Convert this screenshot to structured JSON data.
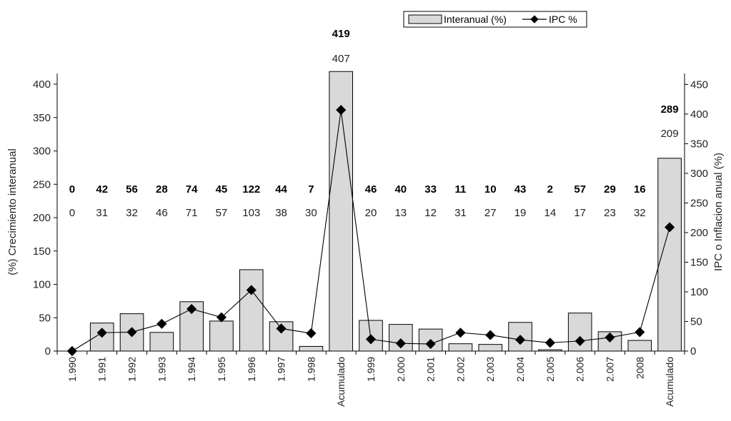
{
  "chart_data": {
    "type": "bar",
    "categories": [
      "1.990",
      "1.991",
      "1.992",
      "1.993",
      "1.994",
      "1.995",
      "1.996",
      "1.997",
      "1.998",
      "Acumulado",
      "1.999",
      "2.000",
      "2.001",
      "2.002",
      "2.003",
      "2.004",
      "2.005",
      "2.006",
      "2.007",
      "2008",
      "Acumulado"
    ],
    "series": [
      {
        "name": "Interanual (%)",
        "type": "bar",
        "axis": "left",
        "color": "#d9d9d9",
        "values": [
          0,
          42,
          56,
          28,
          74,
          45,
          122,
          44,
          7,
          419,
          46,
          40,
          33,
          11,
          10,
          43,
          2,
          57,
          29,
          16,
          289
        ],
        "labels": [
          "0",
          "42",
          "56",
          "28",
          "74",
          "45",
          "122",
          "44",
          "7",
          "419",
          "46",
          "40",
          "33",
          "11",
          "10",
          "43",
          "2",
          "57",
          "29",
          "16",
          "289"
        ]
      },
      {
        "name": "IPC %",
        "type": "line",
        "axis": "right",
        "color": "#000000",
        "values": [
          0,
          31,
          32,
          46,
          71,
          57,
          103,
          38,
          30,
          407,
          20,
          13,
          12,
          31,
          27,
          19,
          14,
          17,
          23,
          32,
          209
        ],
        "labels": [
          "0",
          "31",
          "32",
          "46",
          "71",
          "57",
          "103",
          "38",
          "30",
          "407",
          "20",
          "13",
          "12",
          "31",
          "27",
          "19",
          "14",
          "17",
          "23",
          "32",
          "209"
        ]
      }
    ],
    "ylabel": "(%) Crecimiento interanual",
    "y2label": "IPC o Inflacion anual (%)",
    "ylim": [
      0,
      420
    ],
    "y2lim": [
      0,
      450
    ],
    "yticks": [
      "0",
      "50",
      "100",
      "150",
      "200",
      "250",
      "300",
      "350",
      "400"
    ],
    "y2ticks": [
      "0",
      "50",
      "100",
      "150",
      "200",
      "250",
      "300",
      "350",
      "400",
      "450"
    ],
    "grid": false,
    "legend_position": "top-right"
  }
}
